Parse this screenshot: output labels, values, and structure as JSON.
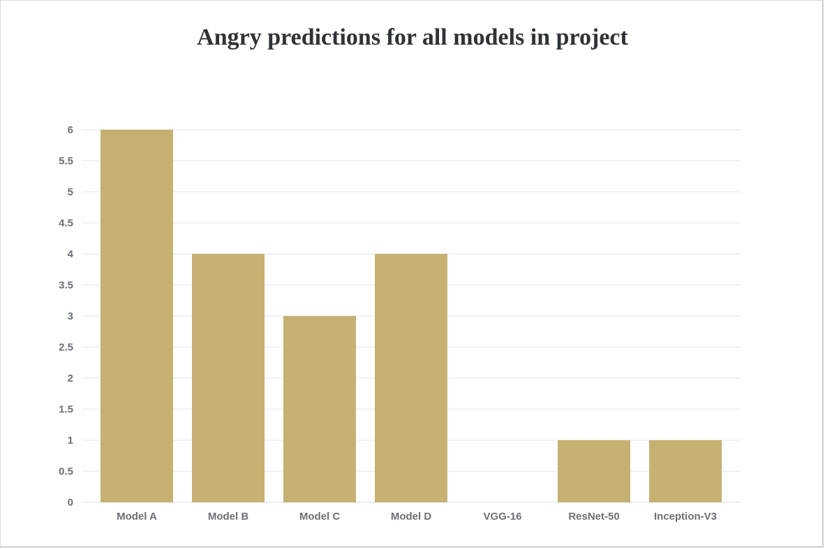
{
  "chart_data": {
    "type": "bar",
    "title": "Angry predictions for all models in project",
    "categories": [
      "Model A",
      "Model B",
      "Model C",
      "Model D",
      "VGG-16",
      "ResNet-50",
      "Inception-V3"
    ],
    "values": [
      6,
      4,
      3,
      4,
      0,
      1,
      1
    ],
    "xlabel": "",
    "ylabel": "",
    "ylim": [
      0,
      6
    ],
    "yticks": [
      "0",
      "0.5",
      "1",
      "1.5",
      "2",
      "2.5",
      "3",
      "3.5",
      "4",
      "4.5",
      "5",
      "5.5",
      "6"
    ],
    "grid": true,
    "legend": "none",
    "bar_color": "#c6b173",
    "grid_color": "#e3e6ec",
    "label_color": "#6b7077"
  }
}
